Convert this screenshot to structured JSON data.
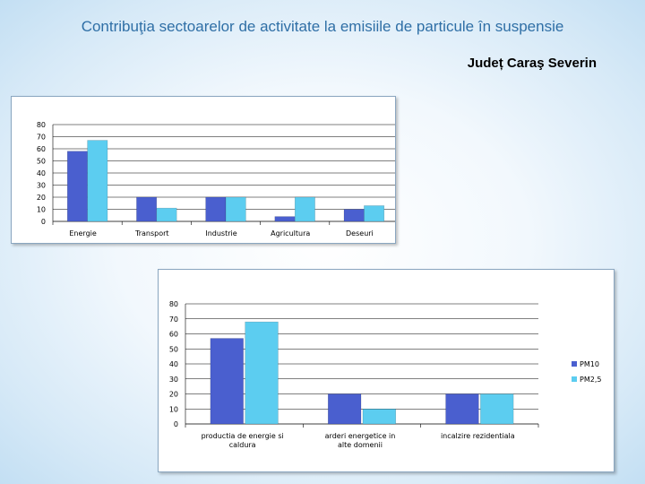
{
  "page": {
    "title": "Contribuţia sectoarelor de activitate la  emisiile de particule în suspensie",
    "subtitle": "Județ Caraş Severin"
  },
  "colors": {
    "PM10": "#4a5fcf",
    "PM2,5": "#5ccdf0",
    "grid": "#000000"
  },
  "chart_data": [
    {
      "type": "bar",
      "categories": [
        "Energie",
        "Transport",
        "Industrie",
        "Agricultura",
        "Deseuri"
      ],
      "series": [
        {
          "name": "PM10",
          "values": [
            58,
            20,
            20,
            4,
            10
          ]
        },
        {
          "name": "PM2,5",
          "values": [
            67,
            11,
            20,
            20,
            13
          ]
        }
      ],
      "ylim": [
        0,
        80
      ],
      "yticks": [
        0,
        10,
        20,
        30,
        40,
        50,
        60,
        70,
        80
      ],
      "grid": true,
      "legend": "right"
    },
    {
      "type": "bar",
      "categories": [
        "productia de energie si caldura",
        "arderi energetice in alte domenii",
        "incalzire rezidentiala"
      ],
      "series": [
        {
          "name": "PM10",
          "values": [
            57,
            20,
            20
          ]
        },
        {
          "name": "PM2,5",
          "values": [
            68,
            10,
            20
          ]
        }
      ],
      "ylim": [
        0,
        80
      ],
      "yticks": [
        0,
        10,
        20,
        30,
        40,
        50,
        60,
        70,
        80
      ],
      "grid": true,
      "legend": "right"
    }
  ]
}
